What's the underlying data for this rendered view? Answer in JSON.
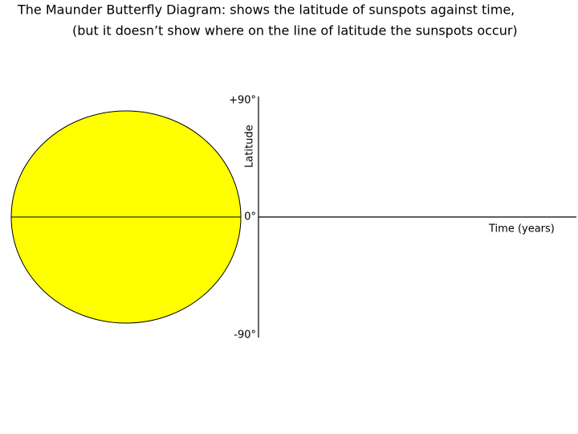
{
  "title": [
    "The Maunder Butterfly Diagram: shows the latitude of sunspots against time,",
    "(but it doesn’t show where on the line of latitude the sunspots occur)"
  ],
  "y_axis": {
    "label": "Latitude",
    "ticks": [
      "+90°",
      "0°",
      "-90°"
    ]
  },
  "x_axis": {
    "label": "Time (years)"
  }
}
